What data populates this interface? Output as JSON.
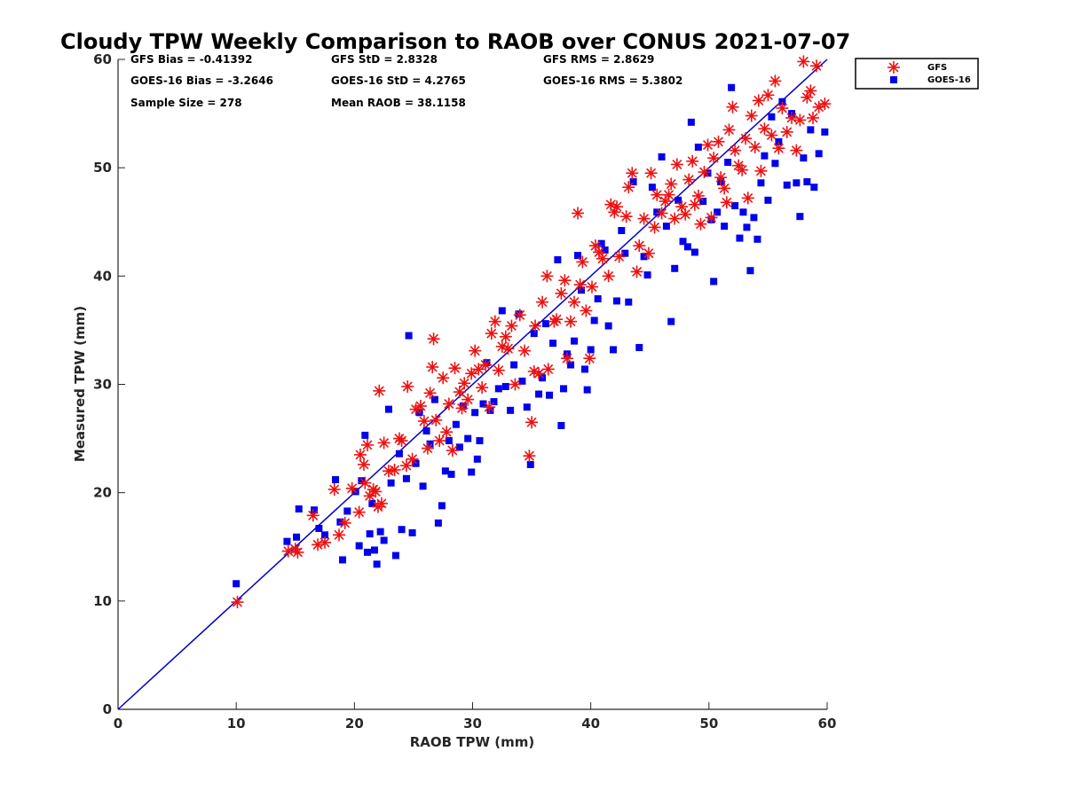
{
  "chart_data": {
    "type": "scatter",
    "title": "Cloudy TPW Weekly Comparison to RAOB over CONUS 2021-07-07",
    "xlabel": "RAOB TPW (mm)",
    "ylabel": "Measured TPW (mm)",
    "xlim": [
      0,
      60
    ],
    "ylim": [
      0,
      60
    ],
    "xticks": [
      0,
      10,
      20,
      30,
      40,
      50,
      60
    ],
    "yticks": [
      0,
      10,
      20,
      30,
      40,
      50,
      60
    ],
    "grid": false,
    "legend_position": "top-right outside",
    "stats": [
      [
        "GFS Bias = -0.41392",
        "GFS StD = 2.8328",
        "GFS RMS = 2.8629"
      ],
      [
        "GOES-16 Bias = -3.2646",
        "GOES-16 StD = 4.2765",
        "GOES-16 RMS = 5.3802"
      ],
      [
        "Sample Size = 278",
        "Mean RAOB = 38.1158",
        ""
      ]
    ],
    "reference_line": {
      "from": [
        0,
        0
      ],
      "to": [
        60,
        60
      ],
      "color": "#0000cc"
    },
    "series": [
      {
        "name": "GFS",
        "marker": "asterisk",
        "color": "#ee1111",
        "points": [
          [
            10.1,
            9.9
          ],
          [
            14.4,
            14.6
          ],
          [
            15.0,
            14.8
          ],
          [
            15.2,
            14.5
          ],
          [
            16.5,
            17.9
          ],
          [
            16.9,
            15.2
          ],
          [
            17.5,
            15.4
          ],
          [
            18.3,
            20.3
          ],
          [
            18.7,
            16.1
          ],
          [
            19.2,
            17.2
          ],
          [
            19.8,
            20.4
          ],
          [
            20.4,
            18.2
          ],
          [
            20.5,
            23.5
          ],
          [
            20.8,
            22.6
          ],
          [
            20.9,
            20.9
          ],
          [
            21.1,
            24.4
          ],
          [
            21.3,
            19.7
          ],
          [
            21.6,
            20.3
          ],
          [
            21.8,
            20.1
          ],
          [
            22.0,
            18.7
          ],
          [
            22.1,
            29.4
          ],
          [
            22.3,
            19.0
          ],
          [
            22.5,
            24.6
          ],
          [
            22.9,
            22.0
          ],
          [
            23.4,
            22.1
          ],
          [
            23.8,
            25.0
          ],
          [
            24.0,
            24.8
          ],
          [
            24.4,
            22.5
          ],
          [
            24.5,
            29.8
          ],
          [
            24.9,
            23.1
          ],
          [
            25.2,
            27.7
          ],
          [
            25.6,
            28.0
          ],
          [
            25.9,
            26.6
          ],
          [
            26.2,
            24.1
          ],
          [
            26.4,
            29.2
          ],
          [
            26.6,
            31.6
          ],
          [
            26.7,
            34.2
          ],
          [
            26.9,
            26.7
          ],
          [
            27.2,
            24.8
          ],
          [
            27.5,
            30.6
          ],
          [
            27.8,
            25.6
          ],
          [
            28.0,
            28.2
          ],
          [
            28.3,
            23.9
          ],
          [
            28.5,
            31.5
          ],
          [
            28.9,
            29.3
          ],
          [
            29.1,
            27.8
          ],
          [
            29.3,
            30.1
          ],
          [
            29.6,
            28.6
          ],
          [
            29.9,
            31.0
          ],
          [
            30.2,
            33.1
          ],
          [
            30.5,
            31.4
          ],
          [
            30.8,
            29.7
          ],
          [
            31.1,
            31.8
          ],
          [
            31.4,
            27.9
          ],
          [
            31.6,
            34.7
          ],
          [
            31.9,
            35.8
          ],
          [
            32.2,
            31.3
          ],
          [
            32.5,
            33.5
          ],
          [
            32.8,
            34.4
          ],
          [
            33.0,
            33.3
          ],
          [
            33.3,
            35.4
          ],
          [
            33.6,
            30.0
          ],
          [
            34.0,
            36.4
          ],
          [
            34.4,
            33.1
          ],
          [
            34.8,
            23.4
          ],
          [
            35.0,
            26.5
          ],
          [
            35.2,
            31.2
          ],
          [
            35.3,
            35.4
          ],
          [
            35.6,
            31.0
          ],
          [
            35.9,
            37.6
          ],
          [
            36.3,
            40.0
          ],
          [
            36.4,
            31.4
          ],
          [
            36.9,
            35.8
          ],
          [
            37.1,
            36.0
          ],
          [
            37.5,
            38.4
          ],
          [
            37.8,
            39.6
          ],
          [
            38.0,
            32.4
          ],
          [
            38.3,
            35.8
          ],
          [
            38.6,
            37.6
          ],
          [
            38.9,
            45.8
          ],
          [
            39.1,
            39.2
          ],
          [
            39.3,
            41.3
          ],
          [
            39.6,
            36.8
          ],
          [
            39.9,
            32.4
          ],
          [
            40.1,
            39.0
          ],
          [
            40.4,
            42.8
          ],
          [
            40.7,
            42.2
          ],
          [
            41.0,
            41.6
          ],
          [
            41.5,
            40.0
          ],
          [
            41.7,
            46.6
          ],
          [
            42.0,
            45.9
          ],
          [
            42.2,
            46.4
          ],
          [
            42.4,
            41.8
          ],
          [
            43.0,
            45.5
          ],
          [
            43.2,
            48.2
          ],
          [
            43.5,
            49.5
          ],
          [
            43.9,
            40.4
          ],
          [
            44.1,
            42.8
          ],
          [
            44.5,
            45.3
          ],
          [
            44.9,
            42.1
          ],
          [
            45.1,
            49.5
          ],
          [
            45.4,
            44.5
          ],
          [
            45.6,
            47.5
          ],
          [
            46.0,
            45.8
          ],
          [
            46.3,
            46.9
          ],
          [
            46.6,
            47.5
          ],
          [
            46.8,
            48.5
          ],
          [
            47.1,
            45.3
          ],
          [
            47.3,
            50.3
          ],
          [
            47.7,
            46.4
          ],
          [
            48.0,
            45.7
          ],
          [
            48.3,
            48.9
          ],
          [
            48.6,
            50.6
          ],
          [
            48.8,
            46.6
          ],
          [
            49.1,
            47.4
          ],
          [
            49.3,
            44.8
          ],
          [
            49.6,
            49.6
          ],
          [
            49.9,
            52.1
          ],
          [
            50.2,
            45.4
          ],
          [
            50.4,
            50.9
          ],
          [
            50.8,
            52.4
          ],
          [
            51.0,
            49.1
          ],
          [
            51.3,
            48.1
          ],
          [
            51.5,
            46.8
          ],
          [
            51.7,
            53.5
          ],
          [
            52.0,
            55.6
          ],
          [
            52.2,
            51.6
          ],
          [
            52.5,
            50.2
          ],
          [
            52.8,
            49.8
          ],
          [
            53.1,
            52.7
          ],
          [
            53.3,
            47.2
          ],
          [
            53.6,
            54.8
          ],
          [
            53.9,
            51.9
          ],
          [
            54.2,
            56.2
          ],
          [
            54.4,
            49.7
          ],
          [
            54.7,
            53.6
          ],
          [
            55.0,
            56.7
          ],
          [
            55.3,
            53.0
          ],
          [
            55.6,
            58.0
          ],
          [
            55.9,
            51.8
          ],
          [
            56.2,
            55.5
          ],
          [
            56.6,
            53.3
          ],
          [
            57.0,
            54.6
          ],
          [
            57.4,
            51.6
          ],
          [
            57.7,
            54.4
          ],
          [
            58.0,
            59.8
          ],
          [
            58.3,
            56.5
          ],
          [
            58.6,
            57.1
          ],
          [
            58.8,
            54.6
          ],
          [
            59.1,
            59.4
          ],
          [
            59.3,
            55.6
          ],
          [
            59.8,
            55.9
          ]
        ]
      },
      {
        "name": "GOES-16",
        "marker": "square",
        "color": "#0000ee",
        "points": [
          [
            10.0,
            11.6
          ],
          [
            14.3,
            15.5
          ],
          [
            15.1,
            15.9
          ],
          [
            15.3,
            18.5
          ],
          [
            16.6,
            18.4
          ],
          [
            17.0,
            16.7
          ],
          [
            17.5,
            16.1
          ],
          [
            18.4,
            21.2
          ],
          [
            18.8,
            17.3
          ],
          [
            19.0,
            13.8
          ],
          [
            19.4,
            18.3
          ],
          [
            20.1,
            20.1
          ],
          [
            20.4,
            15.1
          ],
          [
            20.6,
            21.1
          ],
          [
            20.9,
            25.3
          ],
          [
            21.1,
            14.5
          ],
          [
            21.3,
            16.2
          ],
          [
            21.5,
            19.0
          ],
          [
            21.7,
            14.7
          ],
          [
            21.9,
            13.4
          ],
          [
            22.2,
            16.4
          ],
          [
            22.5,
            15.6
          ],
          [
            22.9,
            27.7
          ],
          [
            23.1,
            20.9
          ],
          [
            23.5,
            14.2
          ],
          [
            23.8,
            23.6
          ],
          [
            24.0,
            16.6
          ],
          [
            24.4,
            21.3
          ],
          [
            24.6,
            34.5
          ],
          [
            24.9,
            16.3
          ],
          [
            25.2,
            22.7
          ],
          [
            25.5,
            27.4
          ],
          [
            25.8,
            20.6
          ],
          [
            26.1,
            25.7
          ],
          [
            26.4,
            24.5
          ],
          [
            26.8,
            28.6
          ],
          [
            27.1,
            17.2
          ],
          [
            27.4,
            18.8
          ],
          [
            27.7,
            22.0
          ],
          [
            28.0,
            24.8
          ],
          [
            28.2,
            21.7
          ],
          [
            28.6,
            26.3
          ],
          [
            28.9,
            24.2
          ],
          [
            29.2,
            28.0
          ],
          [
            29.6,
            25.0
          ],
          [
            29.9,
            21.9
          ],
          [
            30.2,
            27.4
          ],
          [
            30.4,
            23.1
          ],
          [
            30.6,
            24.8
          ],
          [
            30.9,
            28.2
          ],
          [
            31.2,
            32.0
          ],
          [
            31.5,
            27.6
          ],
          [
            31.8,
            28.4
          ],
          [
            32.2,
            29.6
          ],
          [
            32.5,
            36.8
          ],
          [
            32.8,
            29.8
          ],
          [
            33.2,
            27.6
          ],
          [
            33.5,
            31.8
          ],
          [
            33.9,
            36.5
          ],
          [
            34.2,
            30.3
          ],
          [
            34.6,
            27.9
          ],
          [
            34.9,
            22.6
          ],
          [
            35.2,
            34.7
          ],
          [
            35.6,
            29.1
          ],
          [
            35.9,
            30.6
          ],
          [
            36.2,
            35.6
          ],
          [
            36.5,
            29.0
          ],
          [
            36.8,
            33.8
          ],
          [
            37.2,
            41.5
          ],
          [
            37.5,
            26.2
          ],
          [
            37.7,
            29.6
          ],
          [
            38.0,
            32.8
          ],
          [
            38.3,
            31.8
          ],
          [
            38.6,
            34.0
          ],
          [
            38.9,
            41.9
          ],
          [
            39.2,
            38.7
          ],
          [
            39.5,
            31.4
          ],
          [
            39.7,
            29.5
          ],
          [
            40.0,
            33.2
          ],
          [
            40.3,
            35.9
          ],
          [
            40.6,
            37.9
          ],
          [
            40.9,
            43.0
          ],
          [
            41.2,
            42.4
          ],
          [
            41.5,
            35.4
          ],
          [
            41.9,
            33.2
          ],
          [
            42.2,
            37.7
          ],
          [
            42.6,
            44.2
          ],
          [
            42.9,
            42.1
          ],
          [
            43.2,
            37.6
          ],
          [
            43.6,
            48.7
          ],
          [
            44.1,
            33.4
          ],
          [
            44.5,
            41.8
          ],
          [
            44.8,
            40.1
          ],
          [
            45.2,
            48.2
          ],
          [
            45.6,
            45.9
          ],
          [
            46.0,
            51.0
          ],
          [
            46.4,
            44.6
          ],
          [
            46.8,
            35.8
          ],
          [
            47.1,
            40.7
          ],
          [
            47.4,
            47.0
          ],
          [
            47.8,
            43.2
          ],
          [
            48.2,
            42.7
          ],
          [
            48.5,
            54.2
          ],
          [
            48.8,
            42.2
          ],
          [
            49.1,
            51.9
          ],
          [
            49.5,
            46.9
          ],
          [
            49.9,
            49.5
          ],
          [
            50.2,
            45.2
          ],
          [
            50.4,
            39.5
          ],
          [
            50.7,
            45.9
          ],
          [
            51.0,
            48.7
          ],
          [
            51.3,
            44.6
          ],
          [
            51.6,
            50.5
          ],
          [
            51.9,
            57.4
          ],
          [
            52.2,
            46.5
          ],
          [
            52.6,
            43.5
          ],
          [
            52.9,
            45.9
          ],
          [
            53.2,
            44.5
          ],
          [
            53.5,
            40.5
          ],
          [
            53.8,
            45.4
          ],
          [
            54.1,
            43.4
          ],
          [
            54.4,
            48.6
          ],
          [
            54.7,
            51.1
          ],
          [
            55.0,
            47.0
          ],
          [
            55.3,
            54.7
          ],
          [
            55.6,
            50.4
          ],
          [
            55.9,
            52.4
          ],
          [
            56.2,
            56.1
          ],
          [
            56.6,
            48.4
          ],
          [
            57.0,
            55.0
          ],
          [
            57.4,
            48.6
          ],
          [
            57.7,
            45.5
          ],
          [
            58.0,
            50.9
          ],
          [
            58.3,
            48.7
          ],
          [
            58.6,
            53.5
          ],
          [
            58.9,
            48.2
          ],
          [
            59.3,
            51.3
          ],
          [
            59.8,
            53.3
          ]
        ]
      }
    ]
  }
}
